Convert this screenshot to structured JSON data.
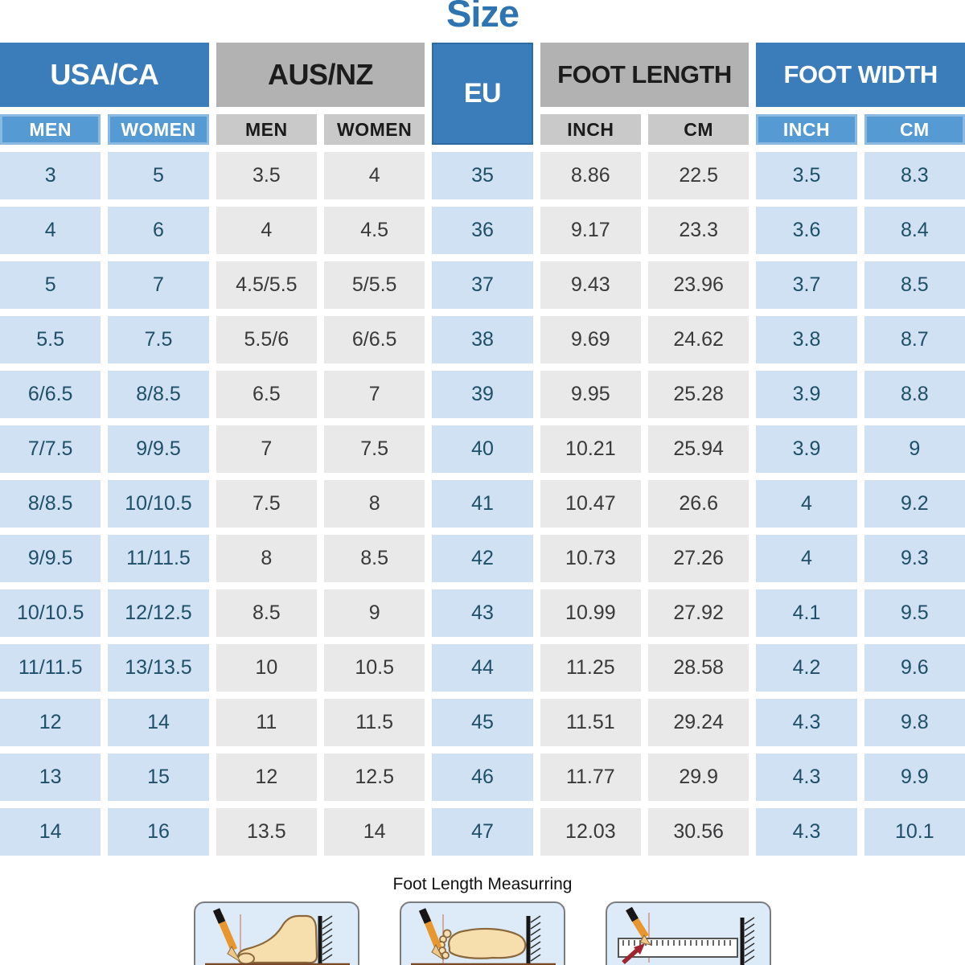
{
  "title": "Size",
  "colors": {
    "title_blue": "#2e74b1",
    "header_blue": "#3b7dbb",
    "header_gray": "#b2b2b2",
    "subheader_blue": "#569ad3",
    "subheader_gray": "#c9c9c9",
    "cell_blue": "#cfe1f3",
    "cell_gray": "#e9e9e9",
    "cell_text_blue": "#1f4f66",
    "cell_text_gray": "#39393b"
  },
  "header": {
    "groups": [
      {
        "label": "USA/CA"
      },
      {
        "label": "AUS/NZ"
      },
      {
        "label": "EU"
      },
      {
        "label": "FOOT LENGTH"
      },
      {
        "label": "FOOT WIDTH"
      }
    ],
    "subheaders": [
      {
        "label": "MEN"
      },
      {
        "label": "WOMEN"
      },
      {
        "label": "MEN"
      },
      {
        "label": "WOMEN"
      },
      {
        "label": "INCH"
      },
      {
        "label": "CM"
      },
      {
        "label": "INCH"
      },
      {
        "label": "CM"
      }
    ]
  },
  "column_styles": [
    "blue",
    "blue",
    "gray",
    "gray",
    "blue",
    "gray",
    "gray",
    "blue",
    "blue"
  ],
  "chart_data": {
    "type": "table",
    "title": "Size",
    "columns": [
      "USA/CA MEN",
      "USA/CA WOMEN",
      "AUS/NZ MEN",
      "AUS/NZ WOMEN",
      "EU",
      "FOOT LENGTH INCH",
      "FOOT LENGTH CM",
      "FOOT WIDTH INCH",
      "FOOT WIDTH CM"
    ],
    "rows": [
      [
        "3",
        "5",
        "3.5",
        "4",
        "35",
        "8.86",
        "22.5",
        "3.5",
        "8.3"
      ],
      [
        "4",
        "6",
        "4",
        "4.5",
        "36",
        "9.17",
        "23.3",
        "3.6",
        "8.4"
      ],
      [
        "5",
        "7",
        "4.5/5.5",
        "5/5.5",
        "37",
        "9.43",
        "23.96",
        "3.7",
        "8.5"
      ],
      [
        "5.5",
        "7.5",
        "5.5/6",
        "6/6.5",
        "38",
        "9.69",
        "24.62",
        "3.8",
        "8.7"
      ],
      [
        "6/6.5",
        "8/8.5",
        "6.5",
        "7",
        "39",
        "9.95",
        "25.28",
        "3.9",
        "8.8"
      ],
      [
        "7/7.5",
        "9/9.5",
        "7",
        "7.5",
        "40",
        "10.21",
        "25.94",
        "3.9",
        "9"
      ],
      [
        "8/8.5",
        "10/10.5",
        "7.5",
        "8",
        "41",
        "10.47",
        "26.6",
        "4",
        "9.2"
      ],
      [
        "9/9.5",
        "11/11.5",
        "8",
        "8.5",
        "42",
        "10.73",
        "27.26",
        "4",
        "9.3"
      ],
      [
        "10/10.5",
        "12/12.5",
        "8.5",
        "9",
        "43",
        "10.99",
        "27.92",
        "4.1",
        "9.5"
      ],
      [
        "11/11.5",
        "13/13.5",
        "10",
        "10.5",
        "44",
        "11.25",
        "28.58",
        "4.2",
        "9.6"
      ],
      [
        "12",
        "14",
        "11",
        "11.5",
        "45",
        "11.51",
        "29.24",
        "4.3",
        "9.8"
      ],
      [
        "13",
        "15",
        "12",
        "12.5",
        "46",
        "11.77",
        "29.9",
        "4.3",
        "9.9"
      ],
      [
        "14",
        "16",
        "13.5",
        "14",
        "47",
        "12.03",
        "30.56",
        "4.3",
        "10.1"
      ]
    ]
  },
  "footer": {
    "caption": "Foot Length Measurring"
  }
}
